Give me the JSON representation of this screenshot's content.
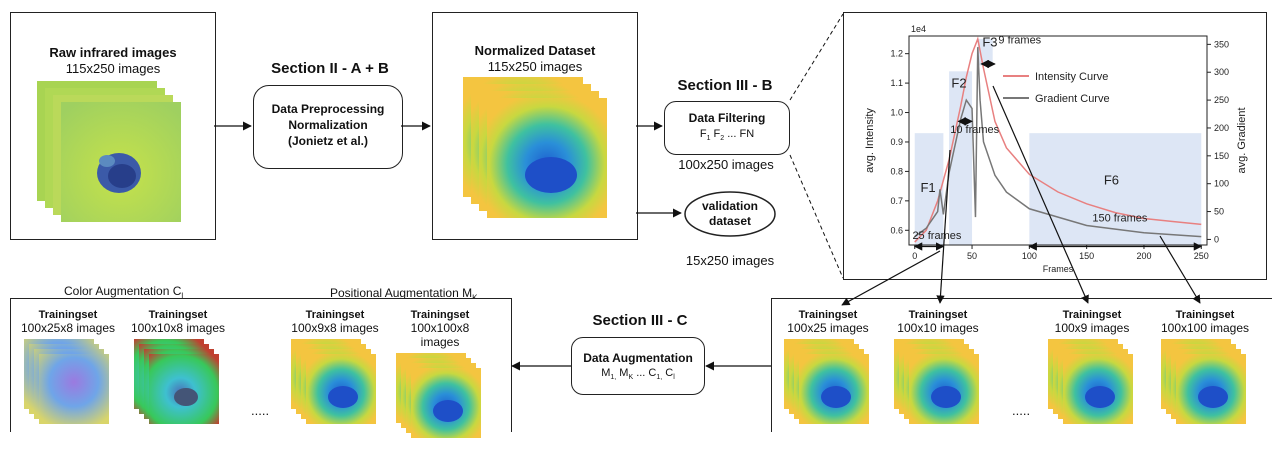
{
  "raw": {
    "title": "Raw infrared images",
    "subtitle": "115x250 images"
  },
  "section_ab": "Section II - A + B",
  "preprocess": {
    "line1": "Data Preprocessing",
    "line2": "Normalization",
    "line3": "(Jonietz et al.)"
  },
  "normalized": {
    "title": "Normalized Dataset",
    "subtitle": "115x250 images"
  },
  "section_b": "Section III - B",
  "filtering": {
    "title": "Data Filtering",
    "f1": "F",
    "f1_sub": "1",
    "f2": "F",
    "f2_sub": "2",
    "ellipsis": "...",
    "fn": "FN",
    "count": "100x250 images"
  },
  "validation": {
    "line1": "validation",
    "line2": "dataset",
    "count": "15x250 images"
  },
  "chart": {
    "scale_label": "1e4",
    "ylabel_left": "avg. Intensity",
    "ylabel_right": "avg. Gradient",
    "xlabel": "Frames",
    "yticks_left": [
      "0.6",
      "0.7",
      "0.8",
      "0.9",
      "1.0",
      "1.1",
      "1.2"
    ],
    "yticks_right": [
      "0",
      "50",
      "100",
      "150",
      "200",
      "250",
      "300",
      "350"
    ],
    "xticks": [
      "0",
      "50",
      "100",
      "150",
      "200",
      "250"
    ],
    "legend": [
      "Intensity Curve",
      "Gradient Curve"
    ],
    "regions": {
      "f1": {
        "label": "F1",
        "frames": "25 frames"
      },
      "f2": {
        "label": "F2",
        "frames": "10 frames"
      },
      "f3": {
        "label": "F3",
        "frames": "9 frames"
      },
      "f6": {
        "label": "F6",
        "frames": "150 frames"
      }
    }
  },
  "chart_data": {
    "type": "line",
    "xlabel": "Frames",
    "ylabel": "avg. Intensity",
    "ylabel_right": "avg. Gradient",
    "xlim": [
      -5,
      255
    ],
    "ylim": [
      0.55,
      1.26
    ],
    "ylim_right": [
      -10,
      365
    ],
    "series": [
      {
        "name": "Intensity Curve",
        "axis": "left",
        "x": [
          0,
          10,
          20,
          30,
          40,
          45,
          50,
          55,
          60,
          70,
          80,
          100,
          125,
          150,
          175,
          200,
          225,
          250
        ],
        "y": [
          0.56,
          0.6,
          0.7,
          0.84,
          1.02,
          1.12,
          1.2,
          1.25,
          1.15,
          0.97,
          0.88,
          0.79,
          0.73,
          0.69,
          0.66,
          0.64,
          0.63,
          0.62
        ]
      },
      {
        "name": "Gradient Curve",
        "axis": "right",
        "x": [
          0,
          10,
          20,
          22,
          25,
          30,
          40,
          45,
          50,
          53,
          55,
          57,
          60,
          70,
          80,
          100,
          150,
          200,
          250
        ],
        "y": [
          5,
          20,
          50,
          90,
          45,
          120,
          215,
          250,
          235,
          40,
          345,
          250,
          175,
          115,
          85,
          55,
          25,
          12,
          5
        ]
      }
    ]
  },
  "section_c": "Section III - C",
  "augmentation": {
    "title": "Data Augmentation",
    "m1": "M",
    "m1_sub": "1,",
    "mk": "M",
    "mk_sub": "K",
    "ellipsis": "...",
    "c1": "C",
    "c1_sub": "1,",
    "cl": "C",
    "cl_sub": "l"
  },
  "color_aug": {
    "label": "Color Augmentation C",
    "label_sub": "l"
  },
  "pos_aug": {
    "label": "Positional Augmentation M",
    "label_sub": "K"
  },
  "left_sets": [
    {
      "title": "Trainingset",
      "count": "100x25x8 images"
    },
    {
      "title": "Trainingset",
      "count": "100x10x8 images"
    },
    {
      "title": "Trainingset",
      "count": "100x9x8 images"
    },
    {
      "title": "Trainingset",
      "count": "100x100x8 images"
    }
  ],
  "right_sets": [
    {
      "title": "Trainingset",
      "count": "100x25 images"
    },
    {
      "title": "Trainingset",
      "count": "100x10 images"
    },
    {
      "title": "Trainingset",
      "count": "100x9 images"
    },
    {
      "title": "Trainingset",
      "count": "100x100 images"
    }
  ],
  "dots": ".....",
  "colors": {
    "intensity": "#e88080",
    "gradient": "#777777",
    "region": "#dde6f5"
  }
}
